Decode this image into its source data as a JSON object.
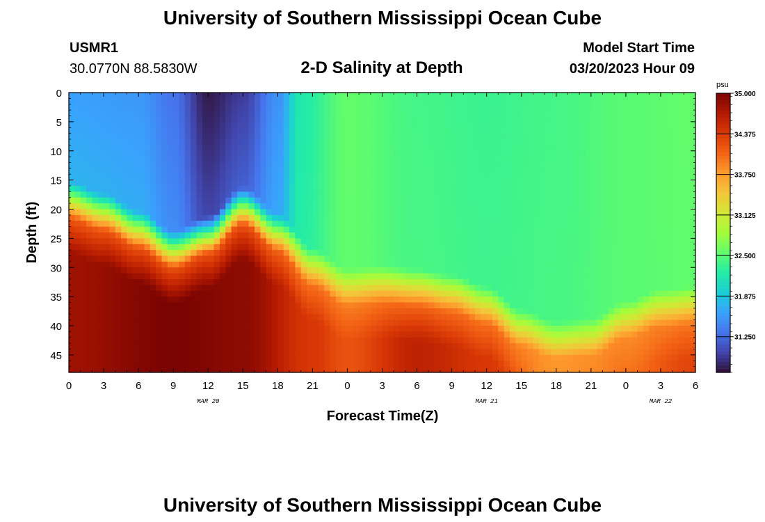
{
  "header": {
    "title": "University of Southern Mississippi Ocean Cube",
    "station_id": "USMR1",
    "coords": "30.0770N  88.5830W",
    "subtitle": "2-D Salinity at Depth",
    "model_label": "Model Start Time",
    "model_time": "03/20/2023 Hour 09"
  },
  "footer": {
    "title": "University of Southern Mississippi Ocean Cube"
  },
  "chart_data": {
    "type": "heatmap",
    "title": "2-D Salinity at Depth",
    "xlabel": "Forecast Time(Z)",
    "ylabel": "Depth (ft)",
    "x_tick_labels": [
      "0",
      "3",
      "6",
      "9",
      "12",
      "15",
      "18",
      "21",
      "0",
      "3",
      "6",
      "9",
      "12",
      "15",
      "18",
      "21",
      "0",
      "3",
      "6"
    ],
    "date_labels": [
      {
        "label": "MAR 20",
        "at_tick": 4
      },
      {
        "label": "MAR 21",
        "at_tick": 12
      },
      {
        "label": "MAR 22",
        "at_tick": 17
      }
    ],
    "y_tick_labels": [
      "0",
      "5",
      "10",
      "15",
      "20",
      "25",
      "30",
      "35",
      "40",
      "45"
    ],
    "ylim": [
      0,
      48
    ],
    "xlim_hours": [
      0,
      54
    ],
    "colorbar": {
      "unit": "psu",
      "min": 30.7,
      "max": 35.0,
      "labels": [
        "35.000",
        "34.375",
        "33.750",
        "33.125",
        "32.500",
        "31.875",
        "31.250"
      ]
    },
    "colormap": [
      "#30123b",
      "#4145ab",
      "#4675ed",
      "#39a2fc",
      "#1bcfd4",
      "#24eca6",
      "#61fc6c",
      "#a4fc3b",
      "#d1e834",
      "#f3c63a",
      "#fe9b2d",
      "#f36315",
      "#d93806",
      "#b11901",
      "#7a0402"
    ],
    "interface_depth_ft": [
      {
        "hour": 0,
        "depth": 18.5
      },
      {
        "hour": 3,
        "depth": 20.5
      },
      {
        "hour": 6,
        "depth": 23.5
      },
      {
        "hour": 9,
        "depth": 27.0
      },
      {
        "hour": 12,
        "depth": 24.5
      },
      {
        "hour": 15,
        "depth": 19.5
      },
      {
        "hour": 18,
        "depth": 24.0
      },
      {
        "hour": 21,
        "depth": 30.0
      },
      {
        "hour": 24,
        "depth": 33.5
      },
      {
        "hour": 27,
        "depth": 33.0
      },
      {
        "hour": 30,
        "depth": 33.5
      },
      {
        "hour": 33,
        "depth": 34.5
      },
      {
        "hour": 36,
        "depth": 36.5
      },
      {
        "hour": 39,
        "depth": 40.5
      },
      {
        "hour": 42,
        "depth": 42.5
      },
      {
        "hour": 45,
        "depth": 42.0
      },
      {
        "hour": 48,
        "depth": 39.0
      },
      {
        "hour": 51,
        "depth": 37.0
      },
      {
        "hour": 54,
        "depth": 36.5
      }
    ],
    "surface_salinity_psu": [
      {
        "hour": 0,
        "value": 31.6
      },
      {
        "hour": 6,
        "value": 31.55
      },
      {
        "hour": 9,
        "value": 31.3
      },
      {
        "hour": 12,
        "value": 30.75
      },
      {
        "hour": 15,
        "value": 30.95
      },
      {
        "hour": 18,
        "value": 31.5
      },
      {
        "hour": 20,
        "value": 32.2
      },
      {
        "hour": 24,
        "value": 32.55
      },
      {
        "hour": 30,
        "value": 32.4
      },
      {
        "hour": 36,
        "value": 32.35
      },
      {
        "hour": 42,
        "value": 32.4
      },
      {
        "hour": 48,
        "value": 32.5
      },
      {
        "hour": 54,
        "value": 32.55
      }
    ],
    "bottom_salinity_psu": [
      {
        "hour": 0,
        "value": 34.8
      },
      {
        "hour": 9,
        "value": 35.0
      },
      {
        "hour": 15,
        "value": 34.9
      },
      {
        "hour": 21,
        "value": 34.4
      },
      {
        "hour": 24,
        "value": 34.2
      },
      {
        "hour": 30,
        "value": 34.6
      },
      {
        "hour": 36,
        "value": 34.4
      },
      {
        "hour": 42,
        "value": 33.8
      },
      {
        "hour": 48,
        "value": 34.0
      },
      {
        "hour": 54,
        "value": 34.3
      }
    ]
  }
}
